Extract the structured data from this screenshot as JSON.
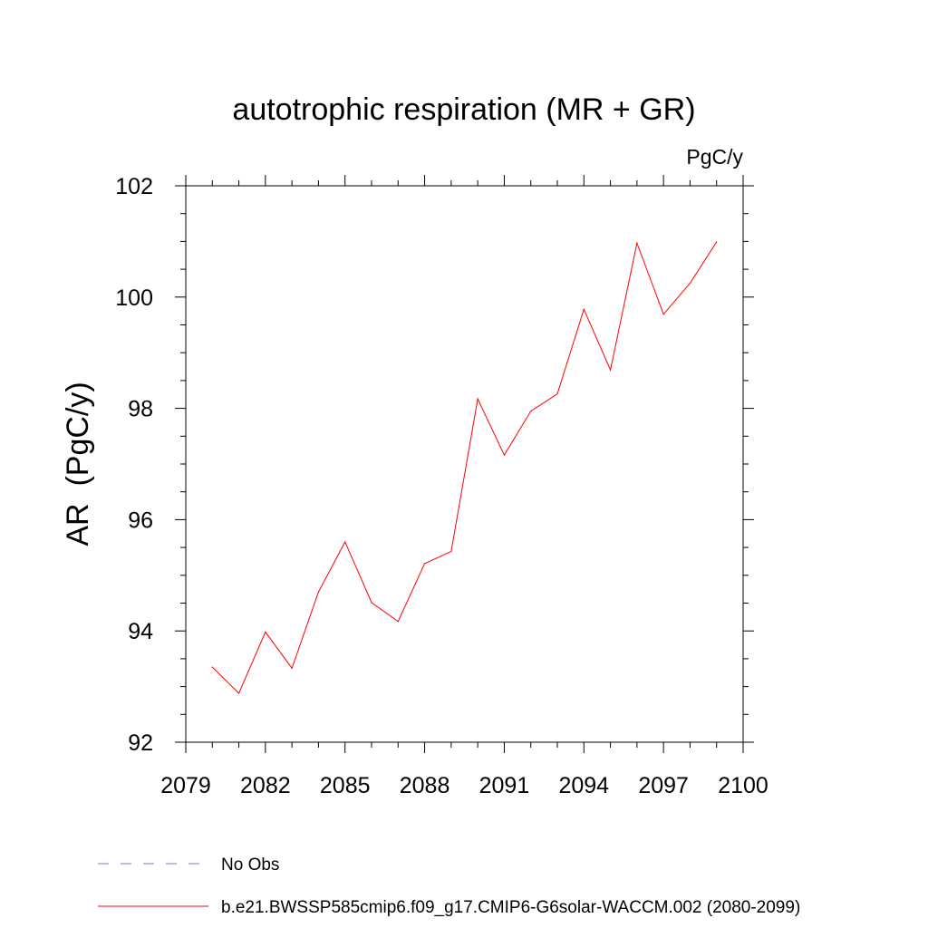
{
  "chart_data": {
    "type": "line",
    "title": "autotrophic respiration (MR + GR)",
    "units": "PgC/y",
    "xlabel": "",
    "ylabel": "AR  (PgC/y)",
    "xlim": [
      2079,
      2100
    ],
    "ylim": [
      92,
      102
    ],
    "xticks": [
      "2079",
      "2082",
      "2085",
      "2088",
      "2091",
      "2094",
      "2097",
      "2100"
    ],
    "yticks": [
      "92",
      "94",
      "96",
      "98",
      "100",
      "102"
    ],
    "x": [
      2080,
      2081,
      2082,
      2083,
      2084,
      2085,
      2086,
      2087,
      2088,
      2089,
      2090,
      2091,
      2092,
      2093,
      2094,
      2095,
      2096,
      2097,
      2098,
      2099
    ],
    "series": [
      {
        "name": "b.e21.BWSSP585cmip6.f09_g17.CMIP6-G6solar-WACCM.002 (2080-2099)",
        "color": "#ff0000",
        "values": [
          93.35,
          92.88,
          93.98,
          93.33,
          94.7,
          95.6,
          94.51,
          94.17,
          95.21,
          95.43,
          98.17,
          97.16,
          97.95,
          98.26,
          99.78,
          98.69,
          100.97,
          99.69,
          100.25,
          100.99
        ]
      }
    ],
    "legend": [
      {
        "label": "No Obs",
        "color": "#7b72c8",
        "style": "dashed"
      },
      {
        "label": "b.e21.BWSSP585cmip6.f09_g17.CMIP6-G6solar-WACCM.002 (2080-2099)",
        "color": "#ff0000",
        "style": "solid"
      }
    ],
    "legend_placement": "bottom-left",
    "grid": false
  }
}
